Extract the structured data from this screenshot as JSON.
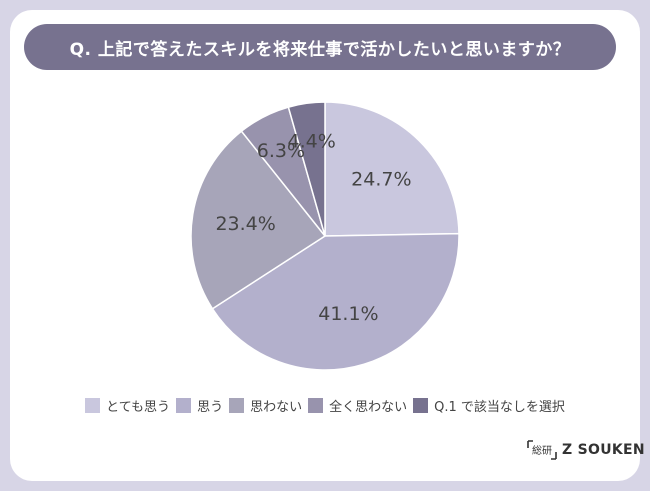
{
  "title": "Q. 上記で答えたスキルを将来仕事で活かしたいと思いますか？",
  "colors": {
    "background": "#d7d5e6",
    "title_bar": "#77728f",
    "label_text": "#444444",
    "slice_border": "#ffffff"
  },
  "chart_data": {
    "type": "pie",
    "title": "",
    "start": "12 o'clock, clockwise",
    "slices": [
      {
        "label": "とても思う",
        "value": 24.7,
        "value_label": "24.7%",
        "color": "#c9c7de"
      },
      {
        "label": "思う",
        "value": 41.1,
        "value_label": "41.1%",
        "color": "#b3b0cc"
      },
      {
        "label": "思わない",
        "value": 23.4,
        "value_label": "23.4%",
        "color": "#a7a5b9"
      },
      {
        "label": "全く思わない",
        "value": 6.3,
        "value_label": "6.3%",
        "color": "#9893ad"
      },
      {
        "label": "Q.1 で該当なしを選択",
        "value": 4.4,
        "value_label": "4.4%",
        "color": "#77728f"
      }
    ],
    "legend_position": "bottom"
  },
  "logo": {
    "text": "Z SOUKEN",
    "mark_text": "総研"
  }
}
